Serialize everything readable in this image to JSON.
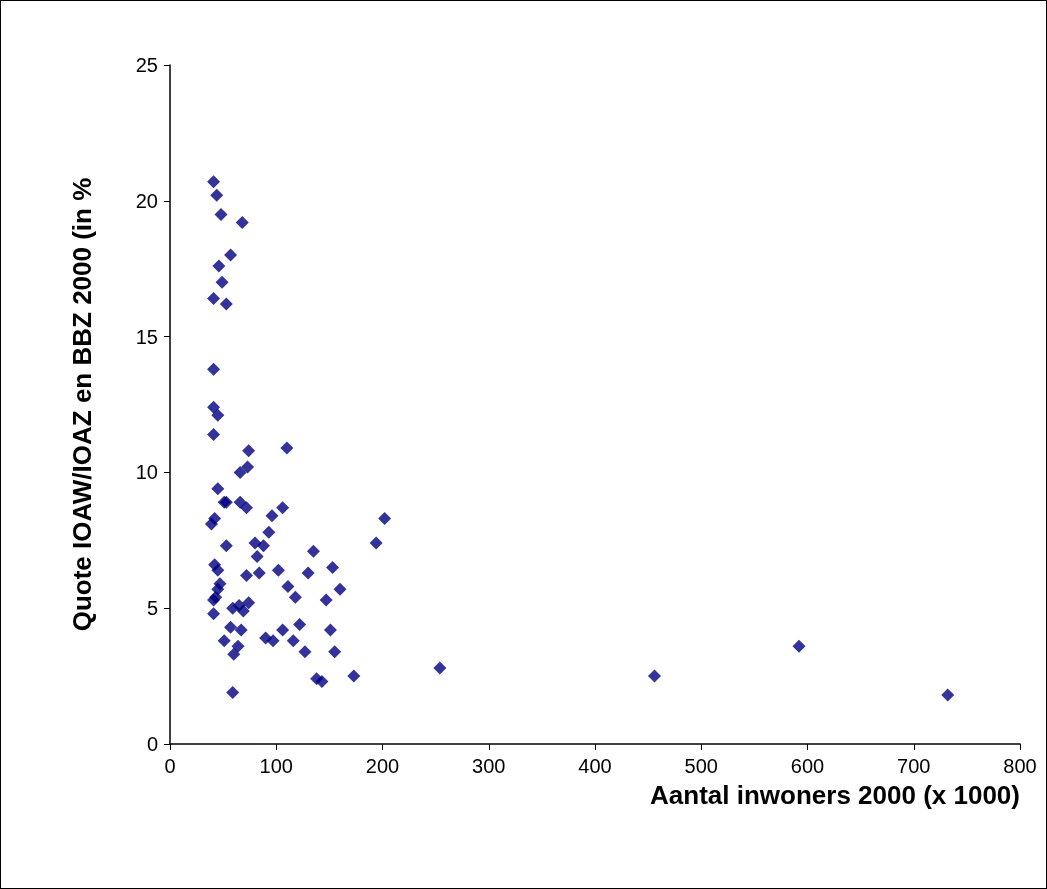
{
  "chart_data": {
    "type": "scatter",
    "xlabel": "Aantal inwoners 2000 (x 1000)",
    "ylabel": "Quote IOAW/IOAZ en BBZ 2000 (in %",
    "x": [
      41,
      44,
      48,
      68,
      57,
      46,
      49,
      41,
      53,
      41,
      41,
      45,
      41,
      74,
      110,
      73,
      66,
      45,
      51,
      53,
      66,
      72,
      106,
      96,
      202,
      42,
      39,
      93,
      80,
      88,
      53,
      194,
      135,
      82,
      72,
      84,
      102,
      130,
      153,
      42,
      45,
      47,
      45,
      111,
      160,
      41,
      43,
      118,
      147,
      74,
      65,
      59,
      69,
      41,
      57,
      67,
      106,
      122,
      151,
      51,
      90,
      97,
      116,
      64,
      60,
      127,
      155,
      138,
      143,
      173,
      254,
      456,
      592,
      732,
      59
    ],
    "values": [
      20.7,
      20.2,
      19.5,
      19.2,
      18.0,
      17.6,
      17.0,
      16.4,
      16.2,
      13.8,
      12.4,
      12.1,
      11.4,
      10.8,
      10.9,
      10.2,
      10.0,
      9.4,
      8.9,
      8.9,
      8.9,
      8.7,
      8.7,
      8.4,
      8.3,
      8.3,
      8.1,
      7.8,
      7.4,
      7.3,
      7.3,
      7.4,
      7.1,
      6.9,
      6.2,
      6.3,
      6.4,
      6.3,
      6.5,
      6.6,
      6.4,
      5.9,
      5.7,
      5.8,
      5.7,
      5.3,
      5.4,
      5.4,
      5.3,
      5.2,
      5.1,
      5.0,
      4.9,
      4.8,
      4.3,
      4.2,
      4.2,
      4.4,
      4.2,
      3.8,
      3.9,
      3.8,
      3.8,
      3.6,
      3.3,
      3.4,
      3.4,
      2.4,
      2.3,
      2.5,
      2.8,
      2.5,
      3.6,
      1.8,
      1.9
    ],
    "color": "#000080",
    "marker": "diamond",
    "xlim": [
      0,
      800
    ],
    "xticks": [
      0,
      100,
      200,
      300,
      400,
      500,
      600,
      700,
      800
    ],
    "ylim": [
      0,
      25
    ],
    "yticks": [
      0,
      5,
      10,
      15,
      20,
      25
    ],
    "grid": false
  }
}
